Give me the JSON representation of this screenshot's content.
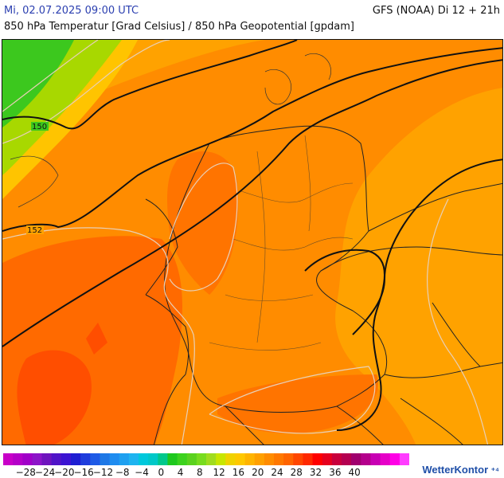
{
  "header": {
    "date": "Mi, 02.07.2025 09:00 UTC",
    "model": "GFS (NOAA) Di 12 + 21h",
    "subtitle": "850 hPa Temperatur [Grad Celsius] / 850 hPa Geopotential [gpdam]"
  },
  "map": {
    "contour_labels": [
      "150",
      "152"
    ]
  },
  "scale": {
    "ticks": [
      "−28",
      "−24",
      "−20",
      "−16",
      "−12",
      "−8",
      "−4",
      "0",
      "4",
      "8",
      "12",
      "16",
      "20",
      "24",
      "28",
      "32",
      "36",
      "40"
    ],
    "colors": [
      "#c800c8",
      "#b400c8",
      "#a000c8",
      "#8c14c8",
      "#6e14be",
      "#5014c8",
      "#3c14d2",
      "#1e1ed2",
      "#1e3cdc",
      "#1e5ae6",
      "#1e78e6",
      "#1e8cf0",
      "#1ea0f0",
      "#1eb4f0",
      "#00c8dc",
      "#00c8c8",
      "#00c88c",
      "#1ec81e",
      "#3cd21e",
      "#5ad21e",
      "#78dc1e",
      "#a0dc1e",
      "#c8e600",
      "#f0d200",
      "#ffc800",
      "#ffb400",
      "#ffa000",
      "#ff8c00",
      "#ff7800",
      "#ff6400",
      "#ff4600",
      "#ff2800",
      "#ff0000",
      "#e6001e",
      "#c8003c",
      "#b40050",
      "#a0006e",
      "#b4008c",
      "#c800b4",
      "#e600c8",
      "#ff00e6",
      "#ff3cff"
    ]
  },
  "logo": {
    "text": "WetterKontor"
  }
}
